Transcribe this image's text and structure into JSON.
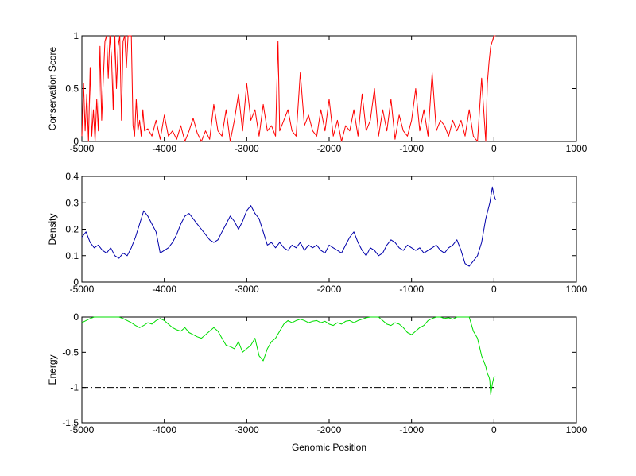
{
  "chart_data": [
    {
      "type": "line",
      "ylabel": "Conservation Score",
      "xlim": [
        -5000,
        1000
      ],
      "ylim": [
        0,
        1
      ],
      "xticks": [
        -5000,
        -4000,
        -3000,
        -2000,
        -1000,
        0,
        1000
      ],
      "yticks": [
        0,
        0.5,
        1
      ],
      "grid": false,
      "series": [
        {
          "color": "#ff0000",
          "x": [
            -5000,
            -4980,
            -4960,
            -4940,
            -4920,
            -4900,
            -4880,
            -4860,
            -4840,
            -4820,
            -4800,
            -4780,
            -4760,
            -4740,
            -4720,
            -4700,
            -4680,
            -4660,
            -4640,
            -4620,
            -4600,
            -4580,
            -4560,
            -4540,
            -4520,
            -4500,
            -4480,
            -4460,
            -4440,
            -4420,
            -4400,
            -4380,
            -4360,
            -4340,
            -4320,
            -4300,
            -4280,
            -4260,
            -4240,
            -4200,
            -4150,
            -4100,
            -4050,
            -4000,
            -3950,
            -3900,
            -3850,
            -3800,
            -3750,
            -3700,
            -3650,
            -3600,
            -3550,
            -3500,
            -3450,
            -3400,
            -3350,
            -3300,
            -3250,
            -3200,
            -3150,
            -3100,
            -3050,
            -3000,
            -2950,
            -2900,
            -2850,
            -2800,
            -2750,
            -2700,
            -2650,
            -2620,
            -2600,
            -2550,
            -2500,
            -2450,
            -2400,
            -2350,
            -2300,
            -2250,
            -2200,
            -2150,
            -2100,
            -2050,
            -2000,
            -1950,
            -1900,
            -1850,
            -1800,
            -1750,
            -1700,
            -1650,
            -1600,
            -1550,
            -1500,
            -1450,
            -1400,
            -1350,
            -1300,
            -1250,
            -1200,
            -1150,
            -1100,
            -1050,
            -1000,
            -950,
            -900,
            -850,
            -800,
            -750,
            -700,
            -650,
            -600,
            -550,
            -500,
            -450,
            -400,
            -350,
            -300,
            -250,
            -200,
            -150,
            -100,
            -80,
            -60,
            -40,
            -20,
            0,
            20
          ],
          "values": [
            0.05,
            0.55,
            0.1,
            0.45,
            0.0,
            0.7,
            0.05,
            0.3,
            0.0,
            0.4,
            0.1,
            0.9,
            0.2,
            0.6,
            0.95,
            1.0,
            0.6,
            1.0,
            0.8,
            0.3,
            1.0,
            0.5,
            0.9,
            1.0,
            0.2,
            0.95,
            1.0,
            0.7,
            1.0,
            1.0,
            1.0,
            0.15,
            0.05,
            0.4,
            0.1,
            0.2,
            0.05,
            0.3,
            0.1,
            0.12,
            0.05,
            0.2,
            0.02,
            0.25,
            0.05,
            0.1,
            0.02,
            0.15,
            0.0,
            0.1,
            0.22,
            0.08,
            0.0,
            0.1,
            0.02,
            0.35,
            0.1,
            0.05,
            0.3,
            0.0,
            0.2,
            0.45,
            0.1,
            0.55,
            0.2,
            0.3,
            0.05,
            0.35,
            0.1,
            0.15,
            0.05,
            0.95,
            0.1,
            0.2,
            0.3,
            0.1,
            0.05,
            0.65,
            0.15,
            0.25,
            0.1,
            0.05,
            0.3,
            0.1,
            0.4,
            0.05,
            0.2,
            0.0,
            0.15,
            0.1,
            0.3,
            0.05,
            0.45,
            0.1,
            0.2,
            0.5,
            0.05,
            0.3,
            0.1,
            0.4,
            0.02,
            0.25,
            0.1,
            0.05,
            0.2,
            0.5,
            0.1,
            0.3,
            0.05,
            0.65,
            0.1,
            0.2,
            0.15,
            0.05,
            0.2,
            0.1,
            0.2,
            0.05,
            0.3,
            0.05,
            0.0,
            0.6,
            0.0,
            0.55,
            0.75,
            0.9,
            0.95,
            1.0,
            1.0
          ]
        }
      ]
    },
    {
      "type": "line",
      "ylabel": "Density",
      "xlim": [
        -5000,
        1000
      ],
      "ylim": [
        0,
        0.4
      ],
      "xticks": [
        -5000,
        -4000,
        -3000,
        -2000,
        -1000,
        0,
        1000
      ],
      "yticks": [
        0,
        0.1,
        0.2,
        0.3,
        0.4
      ],
      "grid": false,
      "series": [
        {
          "color": "#0000aa",
          "x": [
            -5000,
            -4950,
            -4900,
            -4850,
            -4800,
            -4750,
            -4700,
            -4650,
            -4600,
            -4550,
            -4500,
            -4450,
            -4400,
            -4350,
            -4300,
            -4250,
            -4200,
            -4150,
            -4100,
            -4050,
            -4000,
            -3950,
            -3900,
            -3850,
            -3800,
            -3750,
            -3700,
            -3650,
            -3600,
            -3550,
            -3500,
            -3450,
            -3400,
            -3350,
            -3300,
            -3250,
            -3200,
            -3150,
            -3100,
            -3050,
            -3000,
            -2950,
            -2900,
            -2850,
            -2800,
            -2750,
            -2700,
            -2650,
            -2600,
            -2550,
            -2500,
            -2450,
            -2400,
            -2350,
            -2300,
            -2250,
            -2200,
            -2150,
            -2100,
            -2050,
            -2000,
            -1950,
            -1900,
            -1850,
            -1800,
            -1750,
            -1700,
            -1650,
            -1600,
            -1550,
            -1500,
            -1450,
            -1400,
            -1350,
            -1300,
            -1250,
            -1200,
            -1150,
            -1100,
            -1050,
            -1000,
            -950,
            -900,
            -850,
            -800,
            -750,
            -700,
            -650,
            -600,
            -550,
            -500,
            -450,
            -400,
            -350,
            -300,
            -250,
            -200,
            -150,
            -100,
            -50,
            -20,
            0,
            20
          ],
          "values": [
            0.17,
            0.19,
            0.15,
            0.13,
            0.14,
            0.12,
            0.11,
            0.13,
            0.1,
            0.09,
            0.11,
            0.1,
            0.13,
            0.17,
            0.22,
            0.27,
            0.25,
            0.22,
            0.19,
            0.11,
            0.12,
            0.13,
            0.15,
            0.18,
            0.22,
            0.25,
            0.26,
            0.24,
            0.22,
            0.2,
            0.18,
            0.16,
            0.15,
            0.16,
            0.19,
            0.22,
            0.25,
            0.23,
            0.2,
            0.23,
            0.27,
            0.29,
            0.26,
            0.24,
            0.19,
            0.14,
            0.15,
            0.13,
            0.15,
            0.13,
            0.12,
            0.14,
            0.13,
            0.15,
            0.12,
            0.14,
            0.13,
            0.14,
            0.12,
            0.11,
            0.14,
            0.13,
            0.12,
            0.11,
            0.14,
            0.17,
            0.19,
            0.15,
            0.12,
            0.1,
            0.13,
            0.12,
            0.1,
            0.11,
            0.14,
            0.16,
            0.15,
            0.13,
            0.12,
            0.14,
            0.13,
            0.12,
            0.13,
            0.11,
            0.12,
            0.13,
            0.14,
            0.12,
            0.11,
            0.13,
            0.14,
            0.16,
            0.12,
            0.07,
            0.06,
            0.08,
            0.1,
            0.15,
            0.24,
            0.3,
            0.36,
            0.33,
            0.31
          ]
        }
      ]
    },
    {
      "type": "line",
      "ylabel": "Energy",
      "xlabel": "Genomic Position",
      "xlim": [
        -5000,
        1000
      ],
      "ylim": [
        -1.5,
        0
      ],
      "xticks": [
        -5000,
        -4000,
        -3000,
        -2000,
        -1000,
        0,
        1000
      ],
      "yticks": [
        -1.5,
        -1,
        -0.5,
        0
      ],
      "grid": false,
      "reference_line": {
        "y": -1,
        "x": [
          -5000,
          0
        ],
        "style": "dash-dot",
        "color": "#000000"
      },
      "series": [
        {
          "color": "#00dd00",
          "x": [
            -5000,
            -4950,
            -4900,
            -4850,
            -4800,
            -4750,
            -4700,
            -4650,
            -4600,
            -4550,
            -4500,
            -4450,
            -4400,
            -4350,
            -4300,
            -4250,
            -4200,
            -4150,
            -4100,
            -4050,
            -4000,
            -3950,
            -3900,
            -3850,
            -3800,
            -3750,
            -3700,
            -3650,
            -3600,
            -3550,
            -3500,
            -3450,
            -3400,
            -3350,
            -3300,
            -3250,
            -3200,
            -3150,
            -3100,
            -3050,
            -3000,
            -2950,
            -2900,
            -2850,
            -2800,
            -2750,
            -2700,
            -2650,
            -2600,
            -2550,
            -2500,
            -2450,
            -2400,
            -2350,
            -2300,
            -2250,
            -2200,
            -2150,
            -2100,
            -2050,
            -2000,
            -1950,
            -1900,
            -1850,
            -1800,
            -1750,
            -1700,
            -1650,
            -1600,
            -1550,
            -1500,
            -1450,
            -1400,
            -1350,
            -1300,
            -1250,
            -1200,
            -1150,
            -1100,
            -1050,
            -1000,
            -950,
            -900,
            -850,
            -800,
            -750,
            -700,
            -650,
            -600,
            -550,
            -500,
            -450,
            -400,
            -350,
            -300,
            -250,
            -200,
            -150,
            -100,
            -80,
            -60,
            -50,
            -40,
            -20,
            0,
            20
          ],
          "values": [
            -0.08,
            -0.05,
            -0.02,
            0,
            0,
            0,
            0,
            0,
            0,
            0,
            -0.02,
            -0.05,
            -0.08,
            -0.12,
            -0.15,
            -0.12,
            -0.08,
            -0.1,
            -0.05,
            -0.02,
            -0.05,
            -0.1,
            -0.15,
            -0.18,
            -0.2,
            -0.15,
            -0.22,
            -0.25,
            -0.28,
            -0.3,
            -0.25,
            -0.2,
            -0.15,
            -0.2,
            -0.3,
            -0.4,
            -0.42,
            -0.45,
            -0.35,
            -0.5,
            -0.45,
            -0.4,
            -0.3,
            -0.55,
            -0.62,
            -0.45,
            -0.35,
            -0.3,
            -0.2,
            -0.1,
            -0.05,
            -0.08,
            -0.05,
            -0.03,
            -0.05,
            -0.08,
            -0.06,
            -0.05,
            -0.08,
            -0.06,
            -0.1,
            -0.12,
            -0.08,
            -0.1,
            -0.06,
            -0.05,
            -0.08,
            -0.05,
            -0.03,
            -0.01,
            0,
            0,
            0,
            -0.05,
            -0.1,
            -0.12,
            -0.08,
            -0.1,
            -0.15,
            -0.22,
            -0.25,
            -0.2,
            -0.15,
            -0.12,
            -0.05,
            -0.02,
            0,
            0,
            -0.02,
            -0.01,
            -0.03,
            0,
            0,
            0,
            0,
            -0.2,
            -0.3,
            -0.55,
            -0.7,
            -0.8,
            -0.85,
            -0.9,
            -1.1,
            -0.95,
            -0.85,
            -0.85
          ]
        }
      ]
    }
  ]
}
